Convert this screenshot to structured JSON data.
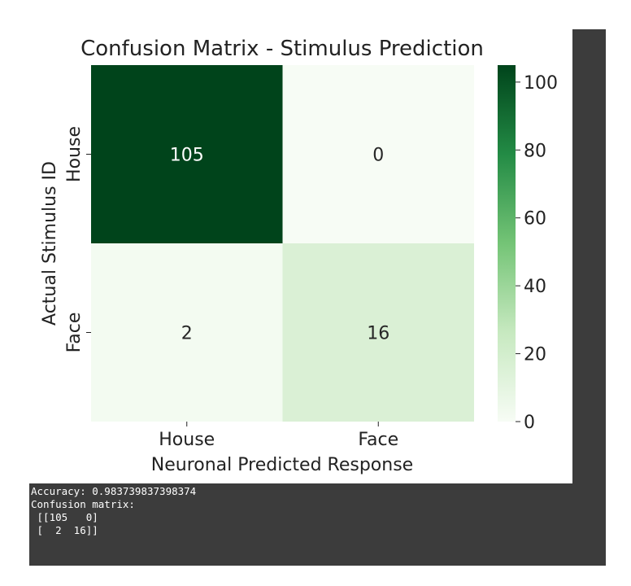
{
  "chart_data": {
    "type": "heatmap",
    "title": "Confusion Matrix - Stimulus Prediction",
    "xlabel": "Neuronal Predicted Response",
    "ylabel": "Actual Stimulus ID",
    "x_categories": [
      "House",
      "Face"
    ],
    "y_categories": [
      "House",
      "Face"
    ],
    "matrix": [
      [
        105,
        0
      ],
      [
        2,
        16
      ]
    ],
    "colormap": "Greens",
    "colorbar": {
      "range": [
        0,
        105
      ],
      "ticks": [
        0,
        20,
        40,
        60,
        80,
        100
      ],
      "colors": [
        "#f7fcf5",
        "#c7e9c0",
        "#74c476",
        "#238b45",
        "#00441b"
      ]
    }
  },
  "console": {
    "lines": [
      "Accuracy: 0.983739837398374",
      "Confusion matrix:",
      " [[105   0]",
      " [  2  16]]"
    ]
  },
  "colors": {
    "console_bg": "#3c3c3c",
    "console_text": "#ffffff"
  }
}
